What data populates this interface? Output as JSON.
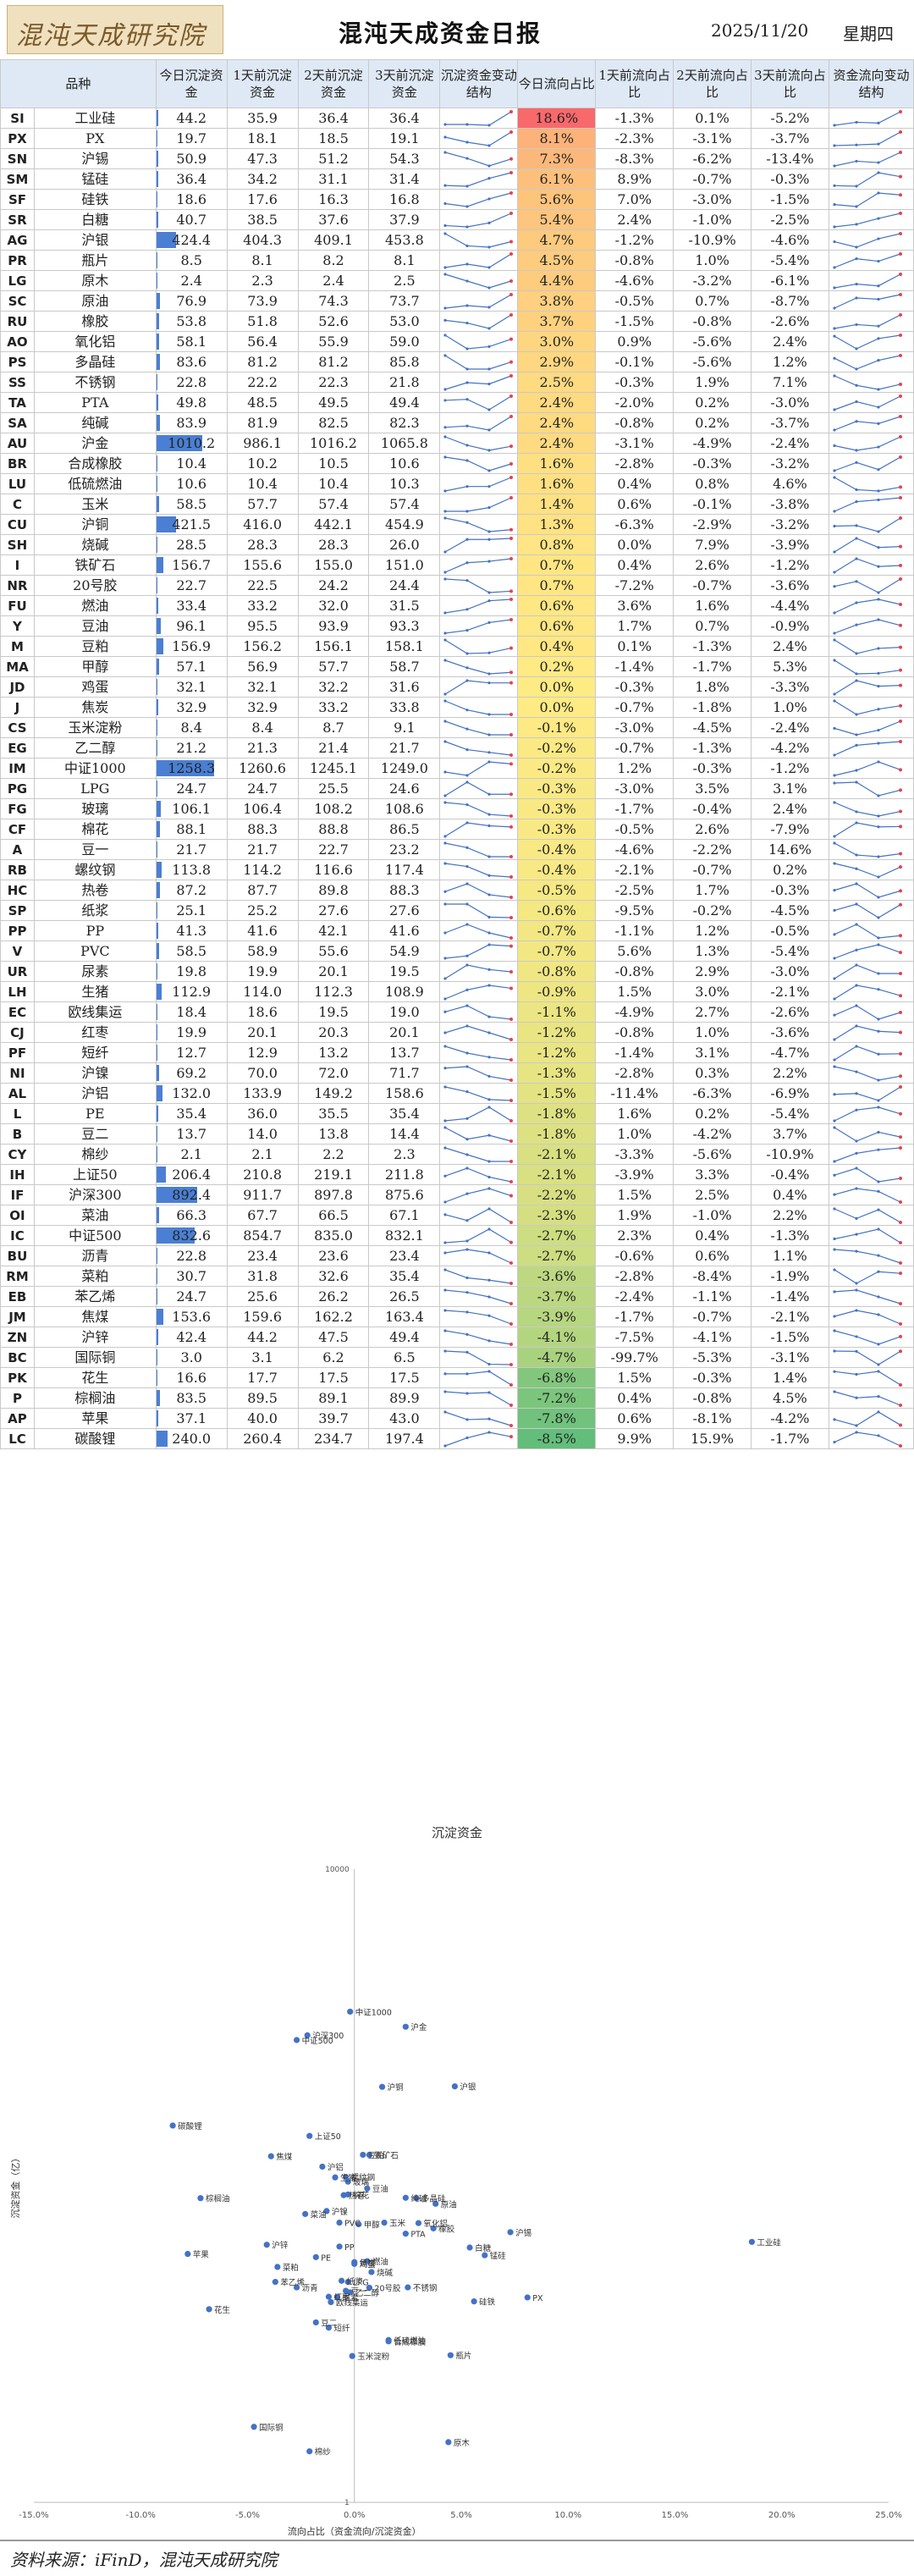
{
  "header": {
    "logo_text": "混沌天成研究院",
    "title": "混沌天成资金日报",
    "date": "2025/11/20",
    "weekday": "星期四"
  },
  "table": {
    "columns": [
      "品种",
      "今日沉淀资金",
      "1天前沉淀资金",
      "2天前沉淀资金",
      "3天前沉淀资金",
      "沉淀资金变动结构",
      "今日流向占比",
      "1天前流向占比",
      "2天前流向占比",
      "3天前流向占比",
      "资金流向变动结构"
    ],
    "rows": [
      {
        "code": "SI",
        "name": "工业硅",
        "oi": [
          44.2,
          35.9,
          36.4,
          36.4
        ],
        "flow": [
          18.6,
          -1.3,
          0.1,
          -5.2
        ]
      },
      {
        "code": "PX",
        "name": "PX",
        "oi": [
          19.7,
          18.1,
          18.5,
          19.1
        ],
        "flow": [
          8.1,
          -2.3,
          -3.1,
          -3.7
        ]
      },
      {
        "code": "SN",
        "name": "沪锡",
        "oi": [
          50.9,
          47.3,
          51.2,
          54.3
        ],
        "flow": [
          7.3,
          -8.3,
          -6.2,
          -13.4
        ]
      },
      {
        "code": "SM",
        "name": "锰硅",
        "oi": [
          36.4,
          34.2,
          31.1,
          31.4
        ],
        "flow": [
          6.1,
          8.9,
          -0.7,
          -0.3
        ]
      },
      {
        "code": "SF",
        "name": "硅铁",
        "oi": [
          18.6,
          17.6,
          16.3,
          16.8
        ],
        "flow": [
          5.6,
          7.0,
          -3.0,
          -1.5
        ]
      },
      {
        "code": "SR",
        "name": "白糖",
        "oi": [
          40.7,
          38.5,
          37.6,
          37.9
        ],
        "flow": [
          5.4,
          2.4,
          -1.0,
          -2.5
        ]
      },
      {
        "code": "AG",
        "name": "沪银",
        "oi": [
          424.4,
          404.3,
          409.1,
          453.8
        ],
        "flow": [
          4.7,
          -1.2,
          -10.9,
          -4.6
        ]
      },
      {
        "code": "PR",
        "name": "瓶片",
        "oi": [
          8.5,
          8.1,
          8.2,
          8.1
        ],
        "flow": [
          4.5,
          -0.8,
          1.0,
          -5.4
        ]
      },
      {
        "code": "LG",
        "name": "原木",
        "oi": [
          2.4,
          2.3,
          2.4,
          2.5
        ],
        "flow": [
          4.4,
          -4.6,
          -3.2,
          -6.1
        ]
      },
      {
        "code": "SC",
        "name": "原油",
        "oi": [
          76.9,
          73.9,
          74.3,
          73.7
        ],
        "flow": [
          3.8,
          -0.5,
          0.7,
          -8.7
        ]
      },
      {
        "code": "RU",
        "name": "橡胶",
        "oi": [
          53.8,
          51.8,
          52.6,
          53.0
        ],
        "flow": [
          3.7,
          -1.5,
          -0.8,
          -2.6
        ]
      },
      {
        "code": "AO",
        "name": "氧化铝",
        "oi": [
          58.1,
          56.4,
          55.9,
          59.0
        ],
        "flow": [
          3.0,
          0.9,
          -5.6,
          2.4
        ]
      },
      {
        "code": "PS",
        "name": "多晶硅",
        "oi": [
          83.6,
          81.2,
          81.2,
          85.8
        ],
        "flow": [
          2.9,
          -0.1,
          -5.6,
          1.2
        ]
      },
      {
        "code": "SS",
        "name": "不锈钢",
        "oi": [
          22.8,
          22.2,
          22.3,
          21.8
        ],
        "flow": [
          2.5,
          -0.3,
          1.9,
          7.1
        ]
      },
      {
        "code": "TA",
        "name": "PTA",
        "oi": [
          49.8,
          48.5,
          49.5,
          49.4
        ],
        "flow": [
          2.4,
          -2.0,
          0.2,
          -3.0
        ]
      },
      {
        "code": "SA",
        "name": "纯碱",
        "oi": [
          83.9,
          81.9,
          82.5,
          82.3
        ],
        "flow": [
          2.4,
          -0.8,
          0.2,
          -3.7
        ]
      },
      {
        "code": "AU",
        "name": "沪金",
        "oi": [
          1010.2,
          986.1,
          1016.2,
          1065.8
        ],
        "flow": [
          2.4,
          -3.1,
          -4.9,
          -2.4
        ]
      },
      {
        "code": "BR",
        "name": "合成橡胶",
        "oi": [
          10.4,
          10.2,
          10.5,
          10.6
        ],
        "flow": [
          1.6,
          -2.8,
          -0.3,
          -3.2
        ]
      },
      {
        "code": "LU",
        "name": "低硫燃油",
        "oi": [
          10.6,
          10.4,
          10.4,
          10.3
        ],
        "flow": [
          1.6,
          0.4,
          0.8,
          4.6
        ]
      },
      {
        "code": "C",
        "name": "玉米",
        "oi": [
          58.5,
          57.7,
          57.4,
          57.4
        ],
        "flow": [
          1.4,
          0.6,
          -0.1,
          -3.8
        ]
      },
      {
        "code": "CU",
        "name": "沪铜",
        "oi": [
          421.5,
          416.0,
          442.1,
          454.9
        ],
        "flow": [
          1.3,
          -6.3,
          -2.9,
          -3.2
        ]
      },
      {
        "code": "SH",
        "name": "烧碱",
        "oi": [
          28.5,
          28.3,
          28.3,
          26.0
        ],
        "flow": [
          0.8,
          0.0,
          7.9,
          -3.9
        ]
      },
      {
        "code": "I",
        "name": "铁矿石",
        "oi": [
          156.7,
          155.6,
          155.0,
          151.0
        ],
        "flow": [
          0.7,
          0.4,
          2.6,
          -1.2
        ]
      },
      {
        "code": "NR",
        "name": "20号胶",
        "oi": [
          22.7,
          22.5,
          24.2,
          24.4
        ],
        "flow": [
          0.7,
          -7.2,
          -0.7,
          -3.6
        ]
      },
      {
        "code": "FU",
        "name": "燃油",
        "oi": [
          33.4,
          33.2,
          32.0,
          31.5
        ],
        "flow": [
          0.6,
          3.6,
          1.6,
          -4.4
        ]
      },
      {
        "code": "Y",
        "name": "豆油",
        "oi": [
          96.1,
          95.5,
          93.9,
          93.3
        ],
        "flow": [
          0.6,
          1.7,
          0.7,
          -0.9
        ]
      },
      {
        "code": "M",
        "name": "豆粕",
        "oi": [
          156.9,
          156.2,
          156.1,
          158.1
        ],
        "flow": [
          0.4,
          0.1,
          -1.3,
          2.4
        ]
      },
      {
        "code": "MA",
        "name": "甲醇",
        "oi": [
          57.1,
          56.9,
          57.7,
          58.7
        ],
        "flow": [
          0.2,
          -1.4,
          -1.7,
          5.3
        ]
      },
      {
        "code": "JD",
        "name": "鸡蛋",
        "oi": [
          32.1,
          32.1,
          32.2,
          31.6
        ],
        "flow": [
          0.0,
          -0.3,
          1.8,
          -3.3
        ]
      },
      {
        "code": "J",
        "name": "焦炭",
        "oi": [
          32.9,
          32.9,
          33.2,
          33.8
        ],
        "flow": [
          0.0,
          -0.7,
          -1.8,
          1.0
        ]
      },
      {
        "code": "CS",
        "name": "玉米淀粉",
        "oi": [
          8.4,
          8.4,
          8.7,
          9.1
        ],
        "flow": [
          -0.1,
          -3.0,
          -4.5,
          -2.4
        ]
      },
      {
        "code": "EG",
        "name": "乙二醇",
        "oi": [
          21.2,
          21.3,
          21.4,
          21.7
        ],
        "flow": [
          -0.2,
          -0.7,
          -1.3,
          -4.2
        ]
      },
      {
        "code": "IM",
        "name": "中证1000",
        "oi": [
          1258.3,
          1260.6,
          1245.1,
          1249.0
        ],
        "flow": [
          -0.2,
          1.2,
          -0.3,
          -1.2
        ]
      },
      {
        "code": "PG",
        "name": "LPG",
        "oi": [
          24.7,
          24.7,
          25.5,
          24.6
        ],
        "flow": [
          -0.3,
          -3.0,
          3.5,
          3.1
        ]
      },
      {
        "code": "FG",
        "name": "玻璃",
        "oi": [
          106.1,
          106.4,
          108.2,
          108.6
        ],
        "flow": [
          -0.3,
          -1.7,
          -0.4,
          2.4
        ]
      },
      {
        "code": "CF",
        "name": "棉花",
        "oi": [
          88.1,
          88.3,
          88.8,
          86.5
        ],
        "flow": [
          -0.3,
          -0.5,
          2.6,
          -7.9
        ]
      },
      {
        "code": "A",
        "name": "豆一",
        "oi": [
          21.7,
          21.7,
          22.7,
          23.2
        ],
        "flow": [
          -0.4,
          -4.6,
          -2.2,
          14.6
        ]
      },
      {
        "code": "RB",
        "name": "螺纹钢",
        "oi": [
          113.8,
          114.2,
          116.6,
          117.4
        ],
        "flow": [
          -0.4,
          -2.1,
          -0.7,
          0.2
        ]
      },
      {
        "code": "HC",
        "name": "热卷",
        "oi": [
          87.2,
          87.7,
          89.8,
          88.3
        ],
        "flow": [
          -0.5,
          -2.5,
          1.7,
          -0.3
        ]
      },
      {
        "code": "SP",
        "name": "纸浆",
        "oi": [
          25.1,
          25.2,
          27.6,
          27.6
        ],
        "flow": [
          -0.6,
          -9.5,
          -0.2,
          -4.5
        ]
      },
      {
        "code": "PP",
        "name": "PP",
        "oi": [
          41.3,
          41.6,
          42.1,
          41.6
        ],
        "flow": [
          -0.7,
          -1.1,
          1.2,
          -0.5
        ]
      },
      {
        "code": "V",
        "name": "PVC",
        "oi": [
          58.5,
          58.9,
          55.6,
          54.9
        ],
        "flow": [
          -0.7,
          5.6,
          1.3,
          -5.4
        ]
      },
      {
        "code": "UR",
        "name": "尿素",
        "oi": [
          19.8,
          19.9,
          20.1,
          19.5
        ],
        "flow": [
          -0.8,
          -0.8,
          2.9,
          -3.0
        ]
      },
      {
        "code": "LH",
        "name": "生猪",
        "oi": [
          112.9,
          114.0,
          112.3,
          108.9
        ],
        "flow": [
          -0.9,
          1.5,
          3.0,
          -2.1
        ]
      },
      {
        "code": "EC",
        "name": "欧线集运",
        "oi": [
          18.4,
          18.6,
          19.5,
          19.0
        ],
        "flow": [
          -1.1,
          -4.9,
          2.7,
          -2.6
        ]
      },
      {
        "code": "CJ",
        "name": "红枣",
        "oi": [
          19.9,
          20.1,
          20.3,
          20.1
        ],
        "flow": [
          -1.2,
          -0.8,
          1.0,
          -3.6
        ]
      },
      {
        "code": "PF",
        "name": "短纤",
        "oi": [
          12.7,
          12.9,
          13.2,
          13.7
        ],
        "flow": [
          -1.2,
          -1.4,
          3.1,
          -4.7
        ]
      },
      {
        "code": "NI",
        "name": "沪镍",
        "oi": [
          69.2,
          70.0,
          72.0,
          71.7
        ],
        "flow": [
          -1.3,
          -2.8,
          0.3,
          2.2
        ]
      },
      {
        "code": "AL",
        "name": "沪铝",
        "oi": [
          132.0,
          133.9,
          149.2,
          158.6
        ],
        "flow": [
          -1.5,
          -11.4,
          -6.3,
          -6.9
        ]
      },
      {
        "code": "L",
        "name": "PE",
        "oi": [
          35.4,
          36.0,
          35.5,
          35.4
        ],
        "flow": [
          -1.8,
          1.6,
          0.2,
          -5.4
        ]
      },
      {
        "code": "B",
        "name": "豆二",
        "oi": [
          13.7,
          14.0,
          13.8,
          14.4
        ],
        "flow": [
          -1.8,
          1.0,
          -4.2,
          3.7
        ]
      },
      {
        "code": "CY",
        "name": "棉纱",
        "oi": [
          2.1,
          2.1,
          2.2,
          2.3
        ],
        "flow": [
          -2.1,
          -3.3,
          -5.6,
          -10.9
        ]
      },
      {
        "code": "IH",
        "name": "上证50",
        "oi": [
          206.4,
          210.8,
          219.1,
          211.8
        ],
        "flow": [
          -2.1,
          -3.9,
          3.3,
          -0.4
        ]
      },
      {
        "code": "IF",
        "name": "沪深300",
        "oi": [
          892.4,
          911.7,
          897.8,
          875.6
        ],
        "flow": [
          -2.2,
          1.5,
          2.5,
          0.4
        ]
      },
      {
        "code": "OI",
        "name": "菜油",
        "oi": [
          66.3,
          67.7,
          66.5,
          67.1
        ],
        "flow": [
          -2.3,
          1.9,
          -1.0,
          2.2
        ]
      },
      {
        "code": "IC",
        "name": "中证500",
        "oi": [
          832.6,
          854.7,
          835.0,
          832.1
        ],
        "flow": [
          -2.7,
          2.3,
          0.4,
          -1.3
        ]
      },
      {
        "code": "BU",
        "name": "沥青",
        "oi": [
          22.8,
          23.4,
          23.6,
          23.4
        ],
        "flow": [
          -2.7,
          -0.6,
          0.6,
          1.1
        ]
      },
      {
        "code": "RM",
        "name": "菜粕",
        "oi": [
          30.7,
          31.8,
          32.6,
          35.4
        ],
        "flow": [
          -3.6,
          -2.8,
          -8.4,
          -1.9
        ]
      },
      {
        "code": "EB",
        "name": "苯乙烯",
        "oi": [
          24.7,
          25.6,
          26.2,
          26.5
        ],
        "flow": [
          -3.7,
          -2.4,
          -1.1,
          -1.4
        ]
      },
      {
        "code": "JM",
        "name": "焦煤",
        "oi": [
          153.6,
          159.6,
          162.2,
          163.4
        ],
        "flow": [
          -3.9,
          -1.7,
          -0.7,
          -2.1
        ]
      },
      {
        "code": "ZN",
        "name": "沪锌",
        "oi": [
          42.4,
          44.2,
          47.5,
          49.4
        ],
        "flow": [
          -4.1,
          -7.5,
          -4.1,
          -1.5
        ]
      },
      {
        "code": "BC",
        "name": "国际铜",
        "oi": [
          3.0,
          3.1,
          6.2,
          6.5
        ],
        "flow": [
          -4.7,
          -99.7,
          -5.3,
          -3.1
        ]
      },
      {
        "code": "PK",
        "name": "花生",
        "oi": [
          16.6,
          17.7,
          17.5,
          17.5
        ],
        "flow": [
          -6.8,
          1.5,
          -0.3,
          1.4
        ]
      },
      {
        "code": "P",
        "name": "棕榈油",
        "oi": [
          83.5,
          89.5,
          89.1,
          89.9
        ],
        "flow": [
          -7.2,
          0.4,
          -0.8,
          4.5
        ]
      },
      {
        "code": "AP",
        "name": "苹果",
        "oi": [
          37.1,
          40.0,
          39.7,
          43.0
        ],
        "flow": [
          -7.8,
          0.6,
          -8.1,
          -4.2
        ]
      },
      {
        "code": "LC",
        "name": "碳酸锂",
        "oi": [
          240.0,
          260.4,
          234.7,
          197.4
        ],
        "flow": [
          -8.5,
          9.9,
          15.9,
          -1.7
        ]
      }
    ]
  },
  "chart_data": {
    "type": "scatter",
    "title": "沉淀资金",
    "xlabel": "流向占比（资金流向/沉淀资金）",
    "ylabel": "沉淀资金（亿）",
    "x_scale": "linear",
    "y_scale": "log",
    "xlim": [
      -15,
      25
    ],
    "ylim": [
      1,
      10000
    ],
    "x_ticks": [
      "-15.0%",
      "-10.0%",
      "-5.0%",
      "0.0%",
      "5.0%",
      "10.0%",
      "15.0%",
      "20.0%",
      "25.0%"
    ],
    "y_ticks": [
      "10000",
      "1"
    ],
    "marker_color": "#4472c4",
    "note": "points: x = 今日流向占比, y = 今日沉淀资金, label = 品种名称 (from table rows)"
  },
  "footer": {
    "source": "资料来源：iFinD，混沌天成研究院"
  },
  "colors": {
    "header_bg": "#dfe9f6",
    "oi_bar": "#4a7fd3",
    "flow_high": "#f8696b",
    "flow_mid": "#ffeb84",
    "flow_low": "#63be7b",
    "spark_line": "#4472c4",
    "spark_marker": "#e8414a"
  }
}
